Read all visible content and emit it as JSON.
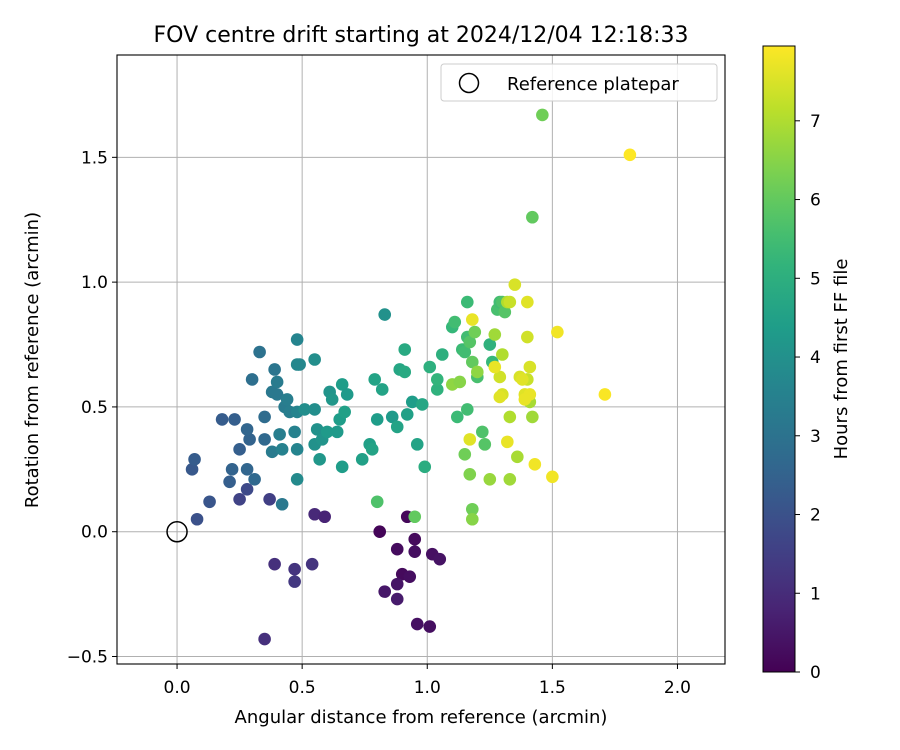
{
  "chart_data": {
    "type": "scatter",
    "title": "FOV centre drift starting at 2024/12/04 12:18:33",
    "xlabel": "Angular distance from reference (arcmin)",
    "ylabel": "Rotation from reference (arcmin)",
    "xlim": [
      -0.24,
      2.19
    ],
    "ylim": [
      -0.53,
      1.91
    ],
    "xticks": [
      0.0,
      0.5,
      1.0,
      1.5,
      2.0
    ],
    "xtick_labels": [
      "0.0",
      "0.5",
      "1.0",
      "1.5",
      "2.0"
    ],
    "yticks": [
      -0.5,
      0.0,
      0.5,
      1.0,
      1.5
    ],
    "ytick_labels": [
      "−0.5",
      "0.0",
      "0.5",
      "1.0",
      "1.5"
    ],
    "grid": true,
    "legend": {
      "position": "top-right",
      "label": "Reference platepar"
    },
    "reference_point": {
      "x": 0.0,
      "y": 0.0
    },
    "colorbar": {
      "label": "Hours from first FF file",
      "colormap": "viridis",
      "range": [
        0,
        7.95
      ],
      "ticks": [
        0,
        1,
        2,
        3,
        4,
        5,
        6,
        7
      ],
      "tick_labels": [
        "0",
        "1",
        "2",
        "3",
        "4",
        "5",
        "6",
        "7"
      ]
    },
    "points": [
      [
        0.81,
        0.0,
        0.1
      ],
      [
        0.92,
        0.06,
        0.15
      ],
      [
        0.95,
        -0.03,
        0.2
      ],
      [
        0.88,
        -0.07,
        0.25
      ],
      [
        0.95,
        -0.08,
        0.3
      ],
      [
        1.02,
        -0.09,
        0.35
      ],
      [
        1.05,
        -0.11,
        0.4
      ],
      [
        0.9,
        -0.17,
        0.2
      ],
      [
        0.93,
        -0.18,
        0.3
      ],
      [
        0.88,
        -0.21,
        0.45
      ],
      [
        0.83,
        -0.24,
        0.5
      ],
      [
        0.88,
        -0.27,
        0.6
      ],
      [
        0.96,
        -0.37,
        0.35
      ],
      [
        1.01,
        -0.38,
        0.3
      ],
      [
        0.55,
        0.07,
        0.9
      ],
      [
        0.59,
        0.06,
        0.8
      ],
      [
        0.39,
        -0.13,
        1.1
      ],
      [
        0.47,
        -0.15,
        1.2
      ],
      [
        0.47,
        -0.2,
        1.3
      ],
      [
        0.54,
        -0.13,
        1.2
      ],
      [
        0.35,
        -0.43,
        1.1
      ],
      [
        0.37,
        0.13,
        1.5
      ],
      [
        0.25,
        0.13,
        1.6
      ],
      [
        0.28,
        0.17,
        1.8
      ],
      [
        0.08,
        0.05,
        2.0
      ],
      [
        0.13,
        0.12,
        2.1
      ],
      [
        0.06,
        0.25,
        2.2
      ],
      [
        0.07,
        0.29,
        2.3
      ],
      [
        0.21,
        0.2,
        2.4
      ],
      [
        0.22,
        0.25,
        2.5
      ],
      [
        0.28,
        0.25,
        2.6
      ],
      [
        0.31,
        0.21,
        2.7
      ],
      [
        0.25,
        0.33,
        2.4
      ],
      [
        0.29,
        0.37,
        2.5
      ],
      [
        0.28,
        0.41,
        2.6
      ],
      [
        0.18,
        0.45,
        2.3
      ],
      [
        0.23,
        0.45,
        2.4
      ],
      [
        0.35,
        0.37,
        2.7
      ],
      [
        0.35,
        0.46,
        2.8
      ],
      [
        0.3,
        0.61,
        2.9
      ],
      [
        0.33,
        0.72,
        3.0
      ],
      [
        0.39,
        0.65,
        3.1
      ],
      [
        0.38,
        0.56,
        3.2
      ],
      [
        0.4,
        0.6,
        3.3
      ],
      [
        0.4,
        0.55,
        3.2
      ],
      [
        0.43,
        0.5,
        3.3
      ],
      [
        0.44,
        0.53,
        3.4
      ],
      [
        0.45,
        0.48,
        3.4
      ],
      [
        0.41,
        0.39,
        3.4
      ],
      [
        0.38,
        0.32,
        3.3
      ],
      [
        0.42,
        0.11,
        3.2
      ],
      [
        0.42,
        0.33,
        3.5
      ],
      [
        0.47,
        0.4,
        3.5
      ],
      [
        0.48,
        0.48,
        3.6
      ],
      [
        0.48,
        0.33,
        3.6
      ],
      [
        0.48,
        0.21,
        3.8
      ],
      [
        0.48,
        0.67,
        3.7
      ],
      [
        0.49,
        0.67,
        3.7
      ],
      [
        0.48,
        0.77,
        3.6
      ],
      [
        0.55,
        0.69,
        3.9
      ],
      [
        0.51,
        0.49,
        3.9
      ],
      [
        0.55,
        0.49,
        3.9
      ],
      [
        0.56,
        0.41,
        4.0
      ],
      [
        0.55,
        0.35,
        4.0
      ],
      [
        0.58,
        0.37,
        4.1
      ],
      [
        0.57,
        0.29,
        4.2
      ],
      [
        0.6,
        0.4,
        4.3
      ],
      [
        0.61,
        0.56,
        4.1
      ],
      [
        0.62,
        0.53,
        4.2
      ],
      [
        0.64,
        0.4,
        4.3
      ],
      [
        0.65,
        0.45,
        4.4
      ],
      [
        0.66,
        0.26,
        4.4
      ],
      [
        0.66,
        0.59,
        4.4
      ],
      [
        0.67,
        0.48,
        4.5
      ],
      [
        0.68,
        0.55,
        4.3
      ],
      [
        0.74,
        0.29,
        4.5
      ],
      [
        0.77,
        0.35,
        4.5
      ],
      [
        0.78,
        0.33,
        4.6
      ],
      [
        0.79,
        0.61,
        4.6
      ],
      [
        0.8,
        0.45,
        4.4
      ],
      [
        0.82,
        0.57,
        4.6
      ],
      [
        0.83,
        0.87,
        4.0
      ],
      [
        0.86,
        0.46,
        4.3
      ],
      [
        0.88,
        0.42,
        4.6
      ],
      [
        0.89,
        0.65,
        4.7
      ],
      [
        0.91,
        0.64,
        4.8
      ],
      [
        0.91,
        0.73,
        4.8
      ],
      [
        0.92,
        0.47,
        4.5
      ],
      [
        0.94,
        0.52,
        4.4
      ],
      [
        0.96,
        0.35,
        4.6
      ],
      [
        0.98,
        0.51,
        4.7
      ],
      [
        0.99,
        0.26,
        4.9
      ],
      [
        1.01,
        0.66,
        5.0
      ],
      [
        1.04,
        0.57,
        5.1
      ],
      [
        1.04,
        0.61,
        5.2
      ],
      [
        1.06,
        0.71,
        5.0
      ],
      [
        1.1,
        0.82,
        5.3
      ],
      [
        1.11,
        0.84,
        5.5
      ],
      [
        1.12,
        0.46,
        5.4
      ],
      [
        1.14,
        0.73,
        5.4
      ],
      [
        1.15,
        0.72,
        5.5
      ],
      [
        1.16,
        0.92,
        5.4
      ],
      [
        1.16,
        0.78,
        5.5
      ],
      [
        1.16,
        0.49,
        5.5
      ],
      [
        1.17,
        0.76,
        5.8
      ],
      [
        1.18,
        0.68,
        6.0
      ],
      [
        1.19,
        0.8,
        6.2
      ],
      [
        1.2,
        0.62,
        5.6
      ],
      [
        1.22,
        0.4,
        5.7
      ],
      [
        1.23,
        0.35,
        5.8
      ],
      [
        1.25,
        0.75,
        5.1
      ],
      [
        1.26,
        0.68,
        5.3
      ],
      [
        1.28,
        0.89,
        5.6
      ],
      [
        1.29,
        0.92,
        5.5
      ],
      [
        1.3,
        0.92,
        5.7
      ],
      [
        1.31,
        0.88,
        5.8
      ],
      [
        0.8,
        0.12,
        5.7
      ],
      [
        0.95,
        0.06,
        6.0
      ],
      [
        1.15,
        0.31,
        6.2
      ],
      [
        1.17,
        0.23,
        6.4
      ],
      [
        1.18,
        0.09,
        6.2
      ],
      [
        1.18,
        0.05,
        6.5
      ],
      [
        1.25,
        0.21,
        6.7
      ],
      [
        1.33,
        0.21,
        6.8
      ],
      [
        1.36,
        0.3,
        6.9
      ],
      [
        1.42,
        1.26,
        6.0
      ],
      [
        1.46,
        1.67,
        6.2
      ],
      [
        1.1,
        0.59,
        6.6
      ],
      [
        1.13,
        0.6,
        6.5
      ],
      [
        1.2,
        0.64,
        6.6
      ],
      [
        1.27,
        0.79,
        6.8
      ],
      [
        1.3,
        0.71,
        7.0
      ],
      [
        1.33,
        0.46,
        7.0
      ],
      [
        1.4,
        0.61,
        7.3
      ],
      [
        1.41,
        0.52,
        6.9
      ],
      [
        1.42,
        0.46,
        6.8
      ],
      [
        1.32,
        0.92,
        7.0
      ],
      [
        1.33,
        0.92,
        7.3
      ],
      [
        1.35,
        0.99,
        7.5
      ],
      [
        1.4,
        0.92,
        7.6
      ],
      [
        1.4,
        0.78,
        7.4
      ],
      [
        1.41,
        0.66,
        7.5
      ],
      [
        1.37,
        0.62,
        7.5
      ],
      [
        1.38,
        0.61,
        7.6
      ],
      [
        1.39,
        0.55,
        7.6
      ],
      [
        1.41,
        0.55,
        7.7
      ],
      [
        1.39,
        0.53,
        7.7
      ],
      [
        1.29,
        0.62,
        7.4
      ],
      [
        1.3,
        0.55,
        7.5
      ],
      [
        1.29,
        0.54,
        7.6
      ],
      [
        1.27,
        0.66,
        7.7
      ],
      [
        1.17,
        0.37,
        7.6
      ],
      [
        1.18,
        0.85,
        7.7
      ],
      [
        1.32,
        0.36,
        7.7
      ],
      [
        1.43,
        0.27,
        7.8
      ],
      [
        1.5,
        0.22,
        7.8
      ],
      [
        1.52,
        0.8,
        7.8
      ],
      [
        1.71,
        0.55,
        7.9
      ],
      [
        1.81,
        1.51,
        7.95
      ]
    ]
  }
}
